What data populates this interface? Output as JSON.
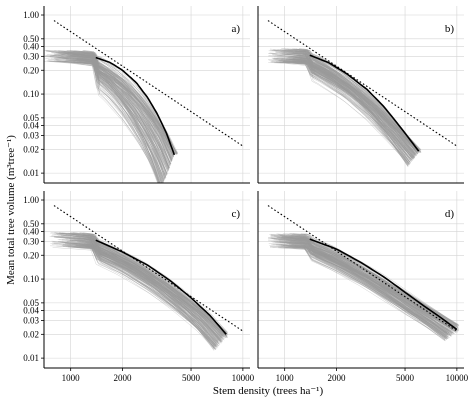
{
  "chart_data": {
    "type": "line",
    "xlabel": "Stem density (trees ha⁻¹)",
    "ylabel": "Mean total tree volume (m³tree⁻¹)",
    "x_scale": "log",
    "y_scale": "log",
    "xlim": [
      700,
      11000
    ],
    "ylim": [
      0.0075,
      1.3
    ],
    "x_ticks": [
      1000,
      2000,
      5000,
      10000
    ],
    "x_tick_labels": [
      "1000",
      "2000",
      "5000",
      "10000"
    ],
    "y_ticks": [
      0.01,
      0.02,
      0.03,
      0.04,
      0.05,
      0.1,
      0.2,
      0.3,
      0.4,
      0.5,
      1.0
    ],
    "y_tick_labels": [
      "0.01",
      "0.02",
      "0.03",
      "0.04",
      "0.05",
      "0.10",
      "0.20",
      "0.30",
      "0.40",
      "0.50",
      "1.00"
    ],
    "grid": true,
    "panels": [
      {
        "label": "a)",
        "mean_curve": {
          "x": [
            1400,
            1700,
            2000,
            2400,
            2800,
            3200,
            3600,
            4000
          ],
          "y": [
            0.29,
            0.25,
            0.2,
            0.14,
            0.09,
            0.055,
            0.032,
            0.017
          ]
        },
        "reference_line": {
          "x": [
            800,
            10000
          ],
          "y": [
            0.85,
            0.022
          ]
        },
        "band": {
          "x_start": [
            700,
            1200
          ],
          "y_start": [
            0.25,
            0.36
          ],
          "x_end": [
            3300,
            4200
          ],
          "y_end": [
            0.017,
            0.018
          ]
        }
      },
      {
        "label": "b)",
        "mean_curve": {
          "x": [
            1400,
            1800,
            2300,
            3000,
            3800,
            4800,
            6000
          ],
          "y": [
            0.31,
            0.25,
            0.18,
            0.115,
            0.068,
            0.036,
            0.019
          ]
        },
        "reference_line": {
          "x": [
            800,
            10000
          ],
          "y": [
            0.85,
            0.022
          ]
        },
        "band": {
          "x_start": [
            800,
            1300
          ],
          "y_start": [
            0.25,
            0.38
          ],
          "x_end": [
            5200,
            6200
          ],
          "y_end": [
            0.018,
            0.02
          ]
        }
      },
      {
        "label": "c)",
        "mean_curve": {
          "x": [
            1400,
            2000,
            2800,
            3800,
            5000,
            6500,
            8000
          ],
          "y": [
            0.31,
            0.22,
            0.15,
            0.095,
            0.058,
            0.034,
            0.02
          ]
        },
        "reference_line": {
          "x": [
            800,
            10000
          ],
          "y": [
            0.85,
            0.022
          ]
        },
        "band": {
          "x_start": [
            750,
            1300
          ],
          "y_start": [
            0.25,
            0.39
          ],
          "x_end": [
            6800,
            8200
          ],
          "y_end": [
            0.018,
            0.022
          ]
        }
      },
      {
        "label": "d)",
        "mean_curve": {
          "x": [
            1400,
            2000,
            2800,
            3800,
            5000,
            6500,
            8000,
            10000
          ],
          "y": [
            0.32,
            0.24,
            0.16,
            0.105,
            0.068,
            0.045,
            0.033,
            0.023
          ]
        },
        "reference_line": {
          "x": [
            800,
            10000
          ],
          "y": [
            0.85,
            0.022
          ]
        },
        "band": {
          "x_start": [
            800,
            1300
          ],
          "y_start": [
            0.25,
            0.38
          ],
          "x_end": [
            8500,
            10300
          ],
          "y_end": [
            0.021,
            0.027
          ]
        }
      }
    ]
  },
  "style": {
    "band_color": "#9a9a9a",
    "mean_color": "#000000",
    "reference_color": "#000000",
    "grid_color": "#d4d4d4"
  }
}
